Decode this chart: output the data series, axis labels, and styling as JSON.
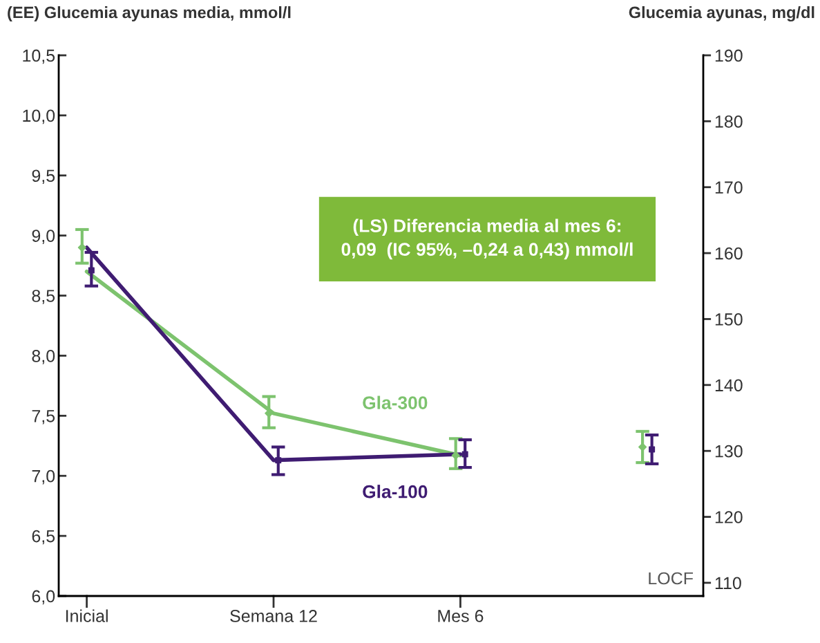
{
  "chart_data": {
    "type": "line",
    "ylabel": "(EE) Glucemia ayunas media, mmol/l",
    "y2label": "Glucemia ayunas, mg/dl",
    "categories": [
      "Inicial",
      "Semana 12",
      "Mes 6",
      null
    ],
    "series": [
      {
        "name": "Gla-300",
        "color": "#7dc36e",
        "values": [
          8.7,
          7.52,
          7.17,
          null
        ]
      },
      {
        "name": "Gla-100",
        "color": "#3f1c72",
        "values": [
          8.9,
          7.13,
          7.18,
          null
        ]
      },
      {
        "type": "scatter",
        "color": "#7dc36e",
        "marker": "diamond",
        "values": [
          8.9,
          7.52,
          7.17,
          7.24
        ],
        "errors": [
          [
            8.77,
            9.05
          ],
          [
            7.4,
            7.66
          ],
          [
            7.06,
            7.31
          ],
          [
            7.11,
            7.37
          ]
        ]
      },
      {
        "type": "scatter",
        "color": "#3f1c72",
        "marker": "square",
        "values": [
          8.71,
          7.13,
          7.18,
          7.22
        ],
        "errors": [
          [
            8.58,
            8.86
          ],
          [
            7.01,
            7.24
          ],
          [
            7.07,
            7.3
          ],
          [
            7.1,
            7.34
          ]
        ]
      }
    ],
    "ylim": [
      6.0,
      10.5
    ],
    "yticks": [
      {
        "value": 6.0,
        "label": "6,0"
      },
      {
        "value": 6.5,
        "label": "6,5"
      },
      {
        "value": 7.0,
        "label": "7,0"
      },
      {
        "value": 7.5,
        "label": "7,5"
      },
      {
        "value": 8.0,
        "label": "8,0"
      },
      {
        "value": 8.5,
        "label": "8,5"
      },
      {
        "value": 9.0,
        "label": "9,0"
      },
      {
        "value": 9.5,
        "label": "9,5"
      },
      {
        "value": 10.0,
        "label": "10,0"
      },
      {
        "value": 10.5,
        "label": "10,5"
      }
    ],
    "y2lim": [
      108,
      190
    ],
    "y2ticks": [
      110,
      120,
      130,
      140,
      150,
      160,
      170,
      180,
      190
    ],
    "annotations": [
      "(LS) Diferencia media al mes 6:\n0,09  (IC 95%, –0,24 a 0,43) mmol/l",
      "LOCF"
    ],
    "grid": false,
    "legend": false,
    "marker": "none"
  }
}
